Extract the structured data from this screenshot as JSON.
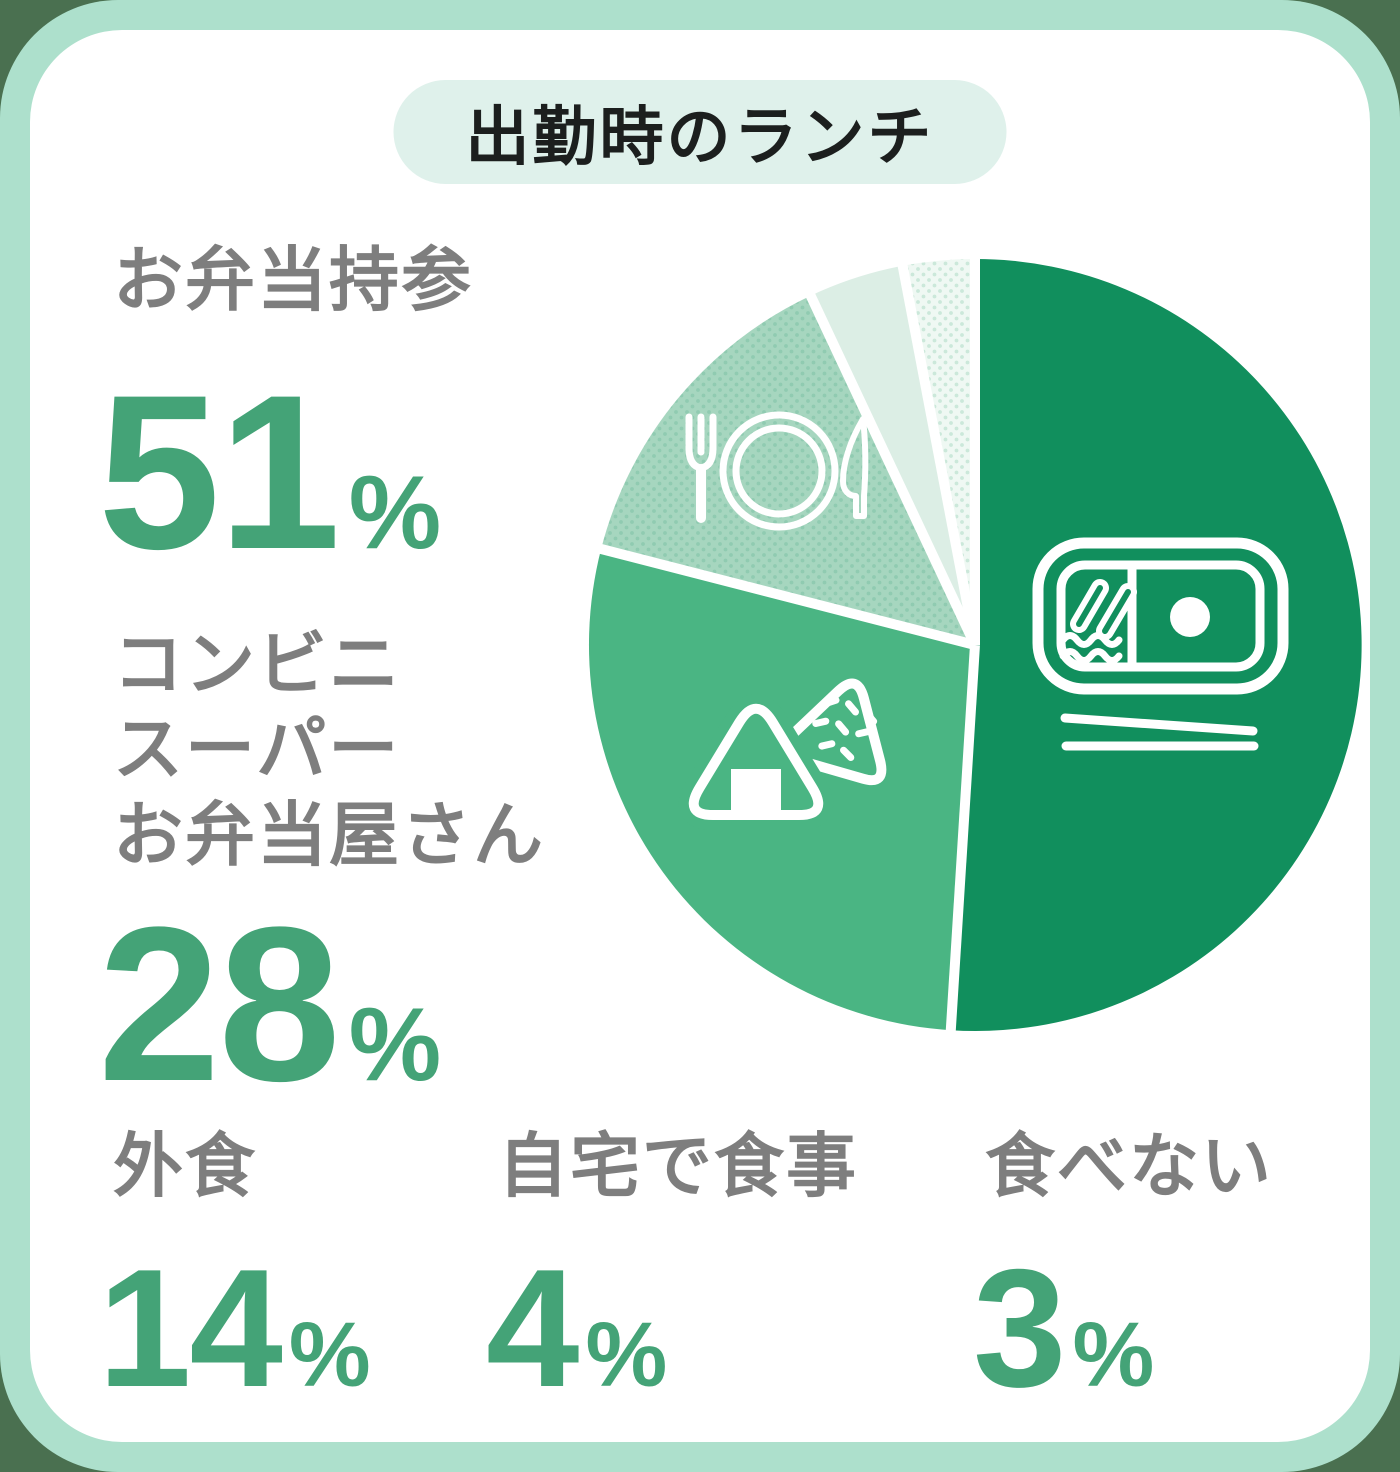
{
  "title": "出勤時のランチ",
  "colors": {
    "page_bg": "#4A7050",
    "frame": "#ADE0CC",
    "card": "#FFFFFF",
    "badge_bg": "#DFF1EB",
    "title_text": "#1C1F1E",
    "label_gray": "#7E7E7E",
    "number_green": "#44A377",
    "icon_white": "#FFFFFF"
  },
  "chart_data": {
    "type": "pie",
    "title": "出勤時のランチ",
    "unit": "%",
    "start_angle_deg": 0,
    "direction": "clockwise",
    "categories": [
      "お弁当持参",
      "コンビニ・スーパー・お弁当屋さん",
      "外食",
      "自宅で食事",
      "食べない"
    ],
    "values": [
      51,
      28,
      14,
      4,
      3
    ],
    "slice_colors": [
      "#118F5D",
      "#4AB583",
      "#A6D6BF",
      "#DCEEE5",
      "#EFF8F3"
    ],
    "slice_dot_colors": [
      null,
      null,
      "#90CBB1",
      null,
      "#CBE8DA"
    ],
    "separator_color": "#FFFFFF",
    "legend_position": "left-and-bottom",
    "slice_icons": [
      "bento-box-with-chopsticks",
      "onigiri-rice-balls",
      "fork-plate-knife",
      null,
      null
    ]
  },
  "stats": [
    {
      "label_lines": [
        "お弁当持参"
      ],
      "value": "51",
      "unit": "%"
    },
    {
      "label_lines": [
        "コンビニ",
        "スーパー",
        "お弁当屋さん"
      ],
      "value": "28",
      "unit": "%"
    },
    {
      "label_lines": [
        "外食"
      ],
      "value": "14",
      "unit": "%"
    },
    {
      "label_lines": [
        "自宅で食事"
      ],
      "value": "4",
      "unit": "%"
    },
    {
      "label_lines": [
        "食べない"
      ],
      "value": "3",
      "unit": "%"
    }
  ]
}
